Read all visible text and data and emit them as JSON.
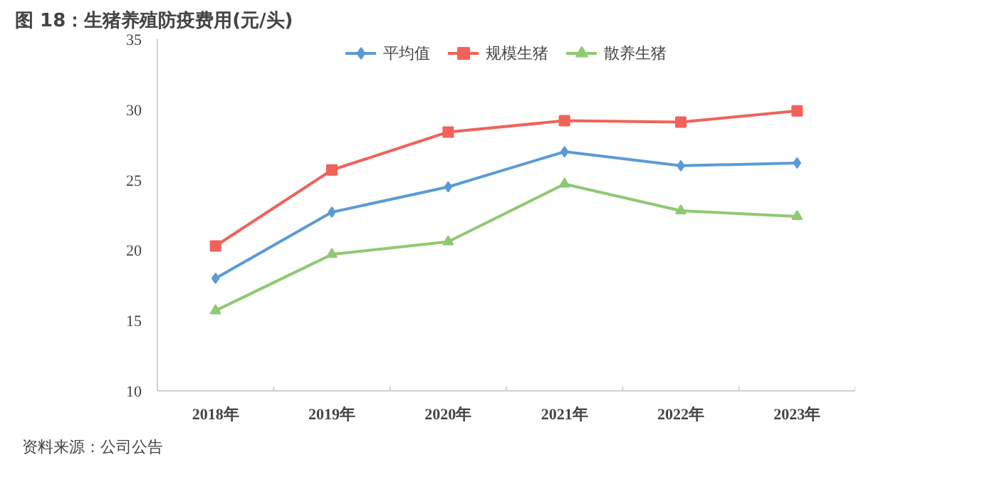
{
  "chart_data": {
    "type": "line",
    "title": "图 18：生猪养殖防疫费用(元/头)",
    "categories": [
      "2018年",
      "2019年",
      "2020年",
      "2021年",
      "2022年",
      "2023年"
    ],
    "series": [
      {
        "name": "平均值",
        "color": "#5b9bd5",
        "marker": "diamond",
        "values": [
          18.0,
          22.7,
          24.5,
          27.0,
          26.0,
          26.2
        ]
      },
      {
        "name": "规模生猪",
        "color": "#f0625a",
        "marker": "square",
        "values": [
          20.3,
          25.7,
          28.4,
          29.2,
          29.1,
          29.9
        ]
      },
      {
        "name": "散养生猪",
        "color": "#8fc972",
        "marker": "triangle",
        "values": [
          15.7,
          19.7,
          20.6,
          24.7,
          22.8,
          22.4
        ]
      }
    ],
    "ylim": [
      10,
      35
    ],
    "yticks": [
      10,
      15,
      20,
      25,
      30,
      35
    ],
    "grid": false,
    "legend": "top",
    "line_style": "solid",
    "annotations": [
      "资料来源：公司公告"
    ]
  }
}
